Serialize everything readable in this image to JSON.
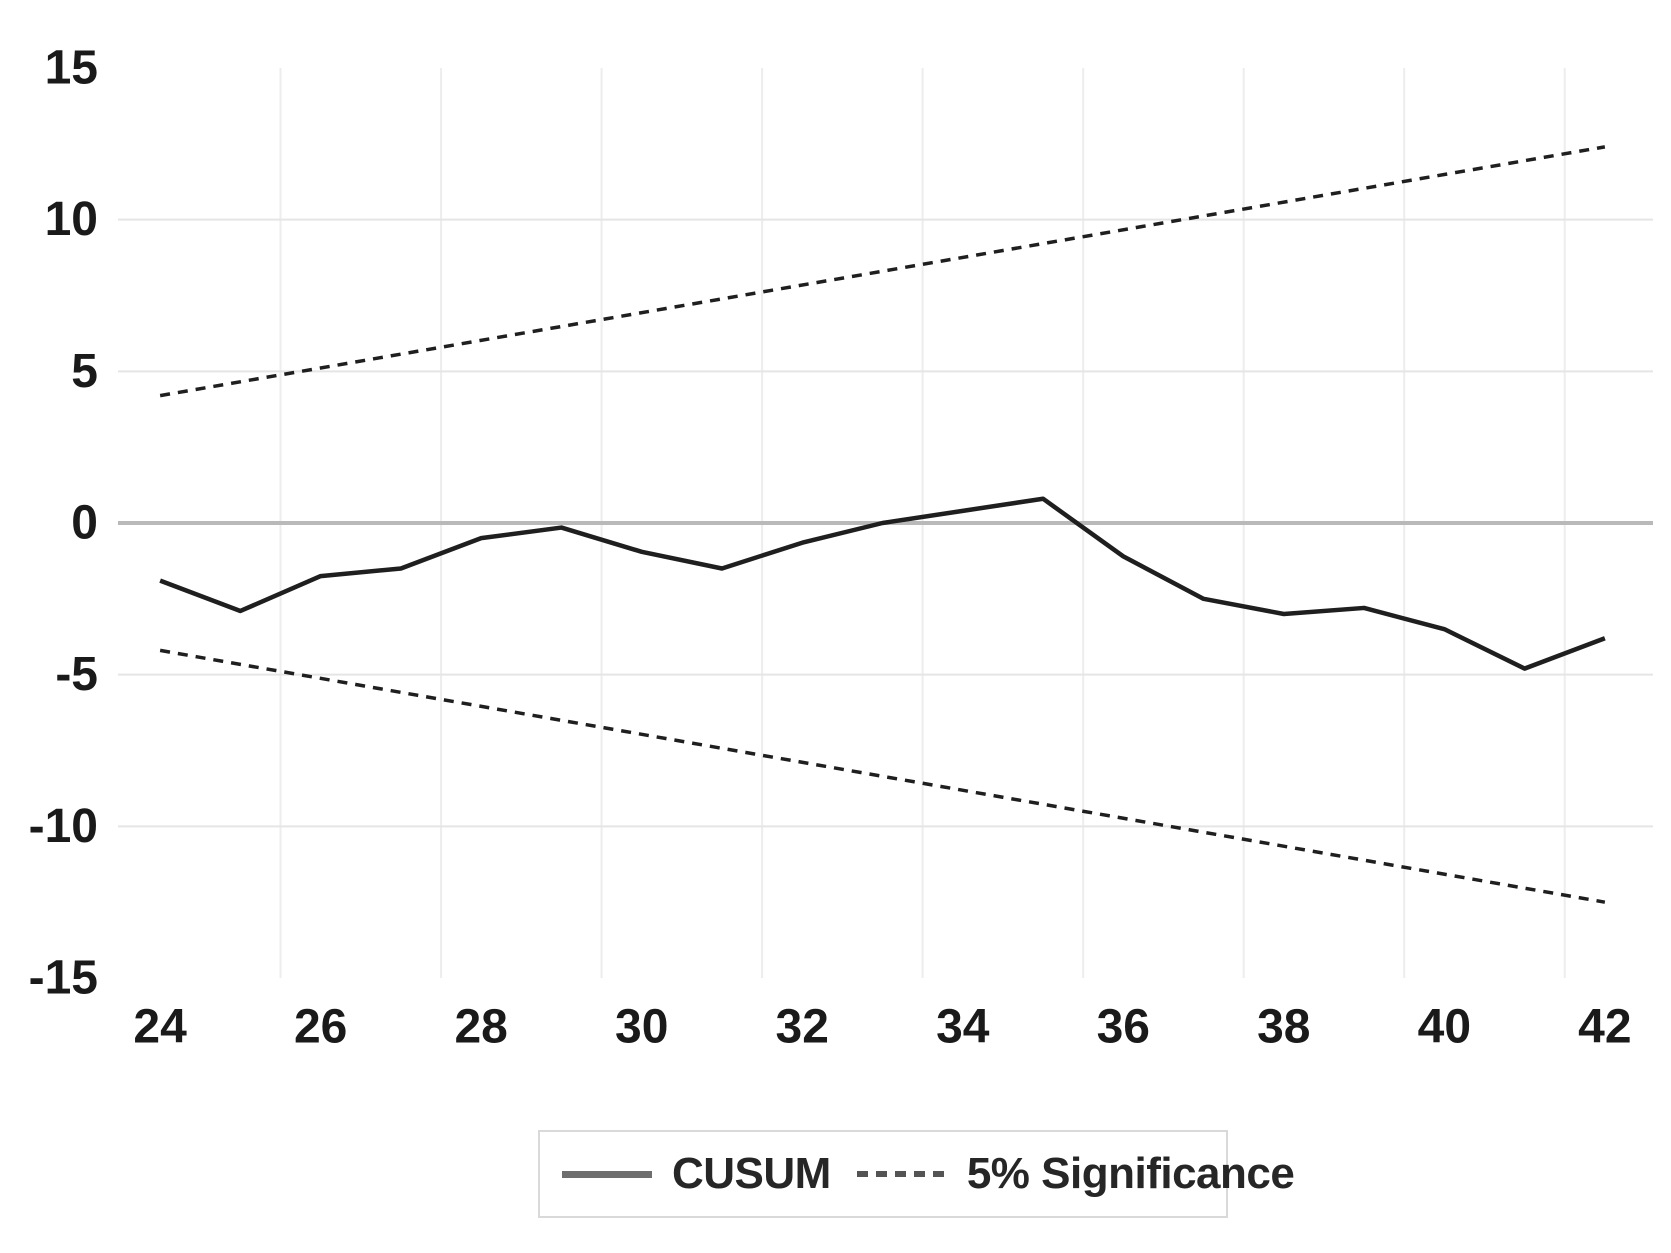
{
  "chart_data": {
    "type": "line",
    "title": "",
    "xlabel": "",
    "ylabel": "",
    "x": [
      24,
      25,
      26,
      27,
      28,
      29,
      30,
      31,
      32,
      33,
      34,
      35,
      36,
      37,
      38,
      39,
      40,
      41,
      42
    ],
    "series": [
      {
        "name": "CUSUM",
        "key": "cusum-line",
        "style": "solid",
        "values": [
          -1.9,
          -2.9,
          -1.75,
          -1.5,
          -0.5,
          -0.15,
          -0.95,
          -1.5,
          -0.65,
          0.0,
          0.4,
          0.8,
          -1.1,
          -2.5,
          -3.0,
          -2.8,
          -3.5,
          -4.8,
          -3.8
        ]
      },
      {
        "name": "5% Significance (upper)",
        "key": "significance-upper-line",
        "style": "dashed",
        "x": [
          24,
          42
        ],
        "values": [
          4.2,
          12.4
        ]
      },
      {
        "name": "5% Significance (lower)",
        "key": "significance-lower-line",
        "style": "dashed",
        "x": [
          24,
          42
        ],
        "values": [
          -4.2,
          -12.5
        ]
      }
    ],
    "xticks": [
      24,
      26,
      28,
      30,
      32,
      34,
      36,
      38,
      40,
      42
    ],
    "yticks": [
      15,
      10,
      5,
      0,
      -5,
      -10,
      -15
    ],
    "ylim": [
      -15,
      15
    ],
    "grid": true,
    "zero_line_emphasized": true,
    "legend": {
      "position": "bottom-center",
      "items": [
        {
          "label": "CUSUM",
          "style": "solid"
        },
        {
          "label": "5% Significance",
          "style": "dashed"
        }
      ]
    }
  },
  "colors": {
    "background": "#ffffff",
    "line": "#1f1f1f",
    "grid_vertical": "#ededed",
    "grid_horizontal": "#e5e5e5",
    "zero_line": "#b9b9b9",
    "axis_text": "#1a1a1a",
    "legend_border": "#d9d9d9",
    "legend_text": "#262626",
    "legend_solid_swatch": "#6e6e6e",
    "legend_dashed_swatch": "#545454"
  }
}
